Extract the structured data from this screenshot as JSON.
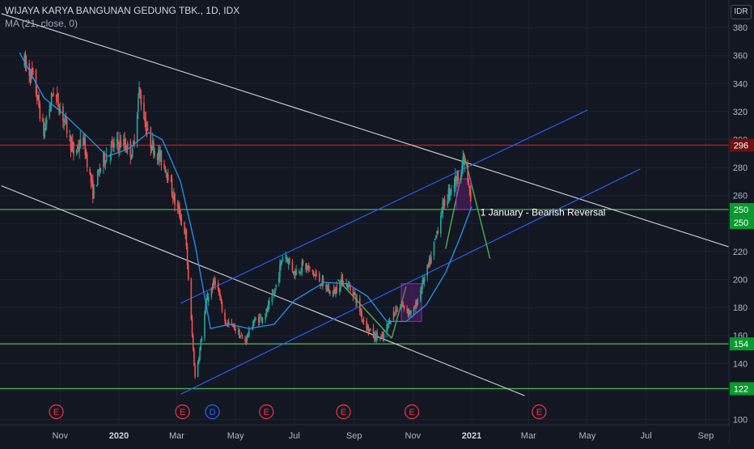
{
  "header": {
    "title": "WIJAYA KARYA BANGUNAN GEDUNG TBK., 1D, IDX",
    "indicator": "MA (21, close, 0)",
    "currency": "IDR"
  },
  "chart_data": {
    "type": "candlestick",
    "title": "WIJAYA KARYA BANGUNAN GEDUNG TBK., 1D, IDX",
    "y_ticks": [
      100,
      120,
      140,
      160,
      180,
      200,
      220,
      240,
      260,
      280,
      300,
      320,
      340,
      360,
      380
    ],
    "ylim": [
      97,
      390
    ],
    "x_ticks": [
      "Nov",
      "2020",
      "Mar",
      "May",
      "Jul",
      "Sep",
      "Nov",
      "2021",
      "Mar",
      "May",
      "Jul",
      "Sep"
    ],
    "x_tick_dates": [
      "2019-11-01",
      "2020-01-01",
      "2020-03-01",
      "2020-05-01",
      "2020-07-01",
      "2020-09-01",
      "2020-11-01",
      "2021-01-01",
      "2021-03-01",
      "2021-05-01",
      "2021-07-01",
      "2021-09-01"
    ],
    "price_path": [
      [
        "2019-09-25",
        355
      ],
      [
        "2019-10-05",
        342
      ],
      [
        "2019-10-15",
        305
      ],
      [
        "2019-10-25",
        335
      ],
      [
        "2019-11-05",
        315
      ],
      [
        "2019-11-15",
        290
      ],
      [
        "2019-11-25",
        300
      ],
      [
        "2019-12-05",
        262
      ],
      [
        "2019-12-15",
        285
      ],
      [
        "2019-12-25",
        295
      ],
      [
        "2020-01-05",
        298
      ],
      [
        "2020-01-15",
        290
      ],
      [
        "2020-01-22",
        335
      ],
      [
        "2020-02-01",
        300
      ],
      [
        "2020-02-10",
        290
      ],
      [
        "2020-02-20",
        278
      ],
      [
        "2020-02-28",
        255
      ],
      [
        "2020-03-05",
        245
      ],
      [
        "2020-03-10",
        232
      ],
      [
        "2020-03-15",
        180
      ],
      [
        "2020-03-20",
        130
      ],
      [
        "2020-03-25",
        150
      ],
      [
        "2020-04-01",
        185
      ],
      [
        "2020-04-10",
        200
      ],
      [
        "2020-04-20",
        170
      ],
      [
        "2020-05-01",
        165
      ],
      [
        "2020-05-10",
        155
      ],
      [
        "2020-05-20",
        170
      ],
      [
        "2020-06-01",
        175
      ],
      [
        "2020-06-10",
        190
      ],
      [
        "2020-06-20",
        220
      ],
      [
        "2020-07-01",
        205
      ],
      [
        "2020-07-10",
        210
      ],
      [
        "2020-07-20",
        205
      ],
      [
        "2020-08-01",
        195
      ],
      [
        "2020-08-10",
        190
      ],
      [
        "2020-08-20",
        200
      ],
      [
        "2020-09-01",
        190
      ],
      [
        "2020-09-10",
        172
      ],
      [
        "2020-09-20",
        160
      ],
      [
        "2020-10-01",
        158
      ],
      [
        "2020-10-10",
        175
      ],
      [
        "2020-10-20",
        182
      ],
      [
        "2020-11-01",
        175
      ],
      [
        "2020-11-10",
        195
      ],
      [
        "2020-11-20",
        215
      ],
      [
        "2020-12-01",
        250
      ],
      [
        "2020-12-10",
        265
      ],
      [
        "2020-12-18",
        275
      ],
      [
        "2020-12-24",
        285
      ],
      [
        "2020-12-28",
        270
      ],
      [
        "2020-12-31",
        255
      ]
    ],
    "ma_path": [
      [
        "2019-09-20",
        362
      ],
      [
        "2019-10-15",
        330
      ],
      [
        "2019-11-05",
        318
      ],
      [
        "2019-11-25",
        305
      ],
      [
        "2019-12-20",
        288
      ],
      [
        "2020-01-10",
        293
      ],
      [
        "2020-02-01",
        305
      ],
      [
        "2020-02-15",
        300
      ],
      [
        "2020-03-05",
        270
      ],
      [
        "2020-03-20",
        225
      ],
      [
        "2020-04-05",
        165
      ],
      [
        "2020-04-25",
        168
      ],
      [
        "2020-05-15",
        165
      ],
      [
        "2020-06-10",
        168
      ],
      [
        "2020-07-01",
        185
      ],
      [
        "2020-08-01",
        198
      ],
      [
        "2020-08-25",
        197
      ],
      [
        "2020-09-15",
        188
      ],
      [
        "2020-10-05",
        170
      ],
      [
        "2020-10-25",
        170
      ],
      [
        "2020-11-15",
        182
      ],
      [
        "2020-12-05",
        205
      ],
      [
        "2020-12-20",
        230
      ],
      [
        "2021-01-01",
        252
      ]
    ],
    "horizontal_levels": [
      {
        "value": 296,
        "label": "296",
        "color": "#b71c1c",
        "label_bg": "#6d1111"
      },
      {
        "value": 250,
        "label": "250",
        "color": "#4caf50",
        "label_bg": "#089a2f"
      },
      {
        "value": 154,
        "label": "154",
        "color": "#4caf50",
        "label_bg": "#089a2f"
      },
      {
        "value": 122,
        "label": "122",
        "color": "#4caf50",
        "label_bg": "#089a2f"
      }
    ],
    "price_tag": {
      "value": 250,
      "label": "250",
      "color": "#089a2f"
    },
    "trendlines": [
      {
        "name": "upper-descending-line",
        "color": "#d1d4dc",
        "from": [
          "2019-09-01",
          390
        ],
        "to": [
          "2021-10-01",
          222
        ]
      },
      {
        "name": "lower-descending-line",
        "color": "#d1d4dc",
        "from": [
          "2019-09-01",
          267
        ],
        "to": [
          "2021-02-25",
          117
        ]
      },
      {
        "name": "channel-upper-line",
        "color": "#2962ff",
        "from": [
          "2020-03-05",
          183
        ],
        "to": [
          "2021-05-01",
          321
        ]
      },
      {
        "name": "channel-lower-line",
        "color": "#2962ff",
        "from": [
          "2020-03-05",
          118
        ],
        "to": [
          "2021-06-25",
          279
        ]
      },
      {
        "name": "rally-line",
        "color": "#4caf50",
        "from": [
          "2020-12-05",
          222
        ],
        "to": [
          "2020-12-25",
          287
        ]
      },
      {
        "name": "drop-line",
        "color": "#4caf50",
        "from": [
          "2020-12-25",
          287
        ],
        "to": [
          "2021-01-20",
          215
        ]
      },
      {
        "name": "prior-drop-line",
        "color": "#4caf50",
        "from": [
          "2020-08-15",
          200
        ],
        "to": [
          "2020-10-10",
          158
        ]
      },
      {
        "name": "prior-rise-line",
        "color": "#4caf50",
        "from": [
          "2020-10-10",
          158
        ],
        "to": [
          "2020-10-25",
          195
        ]
      }
    ],
    "boxes": [
      {
        "name": "topping-box",
        "from": [
          "2020-12-16",
          272
        ],
        "to": [
          "2020-12-31",
          250
        ]
      },
      {
        "name": "october-box",
        "from": [
          "2020-10-20",
          197
        ],
        "to": [
          "2020-11-10",
          170
        ]
      }
    ],
    "annotations": [
      {
        "text": "1 January - Bearish Reversal",
        "date": "2021-01-10",
        "value": 248
      }
    ],
    "event_markers": [
      {
        "label": "E",
        "date": "2019-10-28",
        "color": "#f23645"
      },
      {
        "label": "E",
        "date": "2020-03-07",
        "color": "#f23645"
      },
      {
        "label": "D",
        "date": "2020-04-07",
        "color": "#2962ff"
      },
      {
        "label": "E",
        "date": "2020-06-02",
        "color": "#f23645"
      },
      {
        "label": "E",
        "date": "2020-08-21",
        "color": "#f23645"
      },
      {
        "label": "E",
        "date": "2020-10-31",
        "color": "#f23645"
      },
      {
        "label": "E",
        "date": "2021-03-12",
        "color": "#f23645"
      }
    ]
  }
}
